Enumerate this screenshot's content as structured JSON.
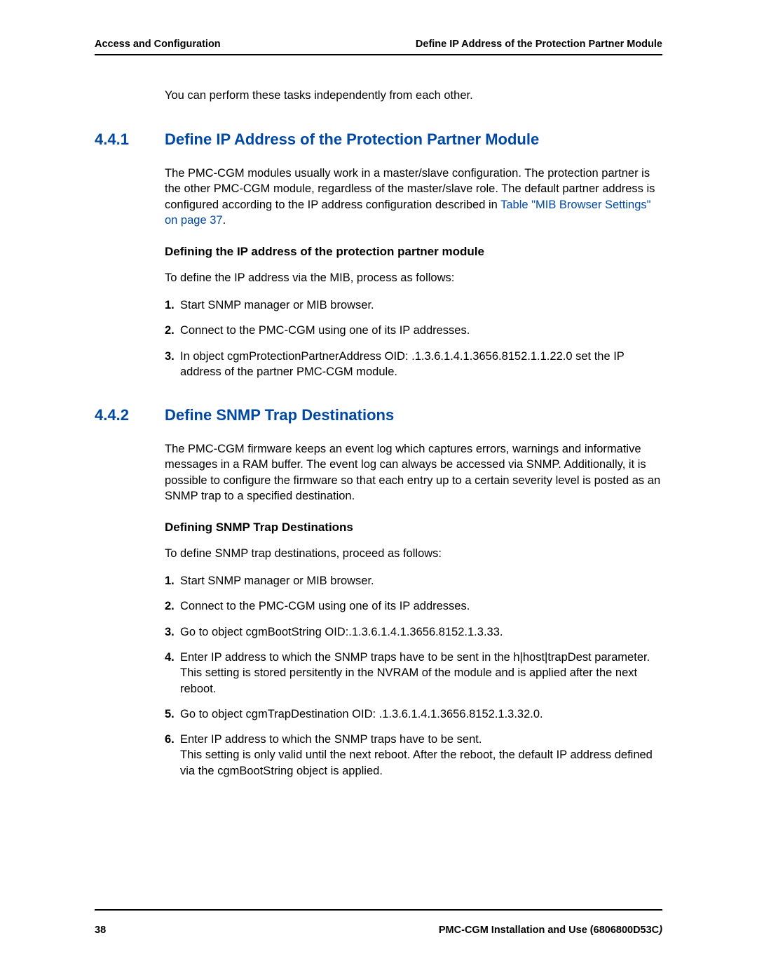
{
  "header": {
    "left": "Access and Configuration",
    "right": "Define IP Address of the Protection Partner Module"
  },
  "intro": "You can perform these tasks independently from each other.",
  "section_441": {
    "number": "4.4.1",
    "title": "Define IP Address of the Protection Partner Module",
    "body_pre_link": "The PMC-CGM modules usually work in a master/slave configuration. The protection partner is the other PMC-CGM module, regardless of the master/slave role. The default partner address is configured according to the IP address configuration described in ",
    "link_text": "Table \"MIB Browser Settings\" on page 37",
    "body_post_link": ".",
    "sub_heading": "Defining the IP address of the protection partner module",
    "lead": "To define the IP address via the MIB, process as follows:",
    "steps": [
      "Start SNMP manager or MIB browser.",
      "Connect to the PMC-CGM using one of its IP addresses.",
      "In object cgmProtectionPartnerAddress OID: .1.3.6.1.4.1.3656.8152.1.1.22.0 set the IP address of the partner PMC-CGM module."
    ]
  },
  "section_442": {
    "number": "4.4.2",
    "title": "Define SNMP Trap Destinations",
    "body": "The PMC-CGM firmware keeps an event log which captures errors, warnings and informative messages in a RAM buffer. The event log can always be accessed via SNMP. Additionally, it is possible to configure the firmware so that each entry up to a certain severity level is posted as an SNMP trap to a specified destination.",
    "sub_heading": "Defining SNMP Trap Destinations",
    "lead": "To define SNMP trap destinations, proceed as follows:",
    "steps": [
      "Start SNMP manager or MIB browser.",
      "Connect to the PMC-CGM using one of its IP addresses.",
      "Go to object cgmBootString OID:.1.3.6.1.4.1.3656.8152.1.3.33.",
      "Enter IP address to which the SNMP traps have to be sent in the h|host|trapDest parameter.\nThis setting is stored persitently in the NVRAM of the module and is applied after the next reboot.",
      "Go to object cgmTrapDestination OID: .1.3.6.1.4.1.3656.8152.1.3.32.0.",
      "Enter IP address to which the SNMP traps have to be sent.\nThis setting is only valid until the next reboot. After the reboot, the default IP address defined via the cgmBootString object is applied."
    ]
  },
  "footer": {
    "page_number": "38",
    "doc_title": "PMC-CGM Installation and Use (6806800D53C",
    "doc_title_suffix": ")"
  }
}
